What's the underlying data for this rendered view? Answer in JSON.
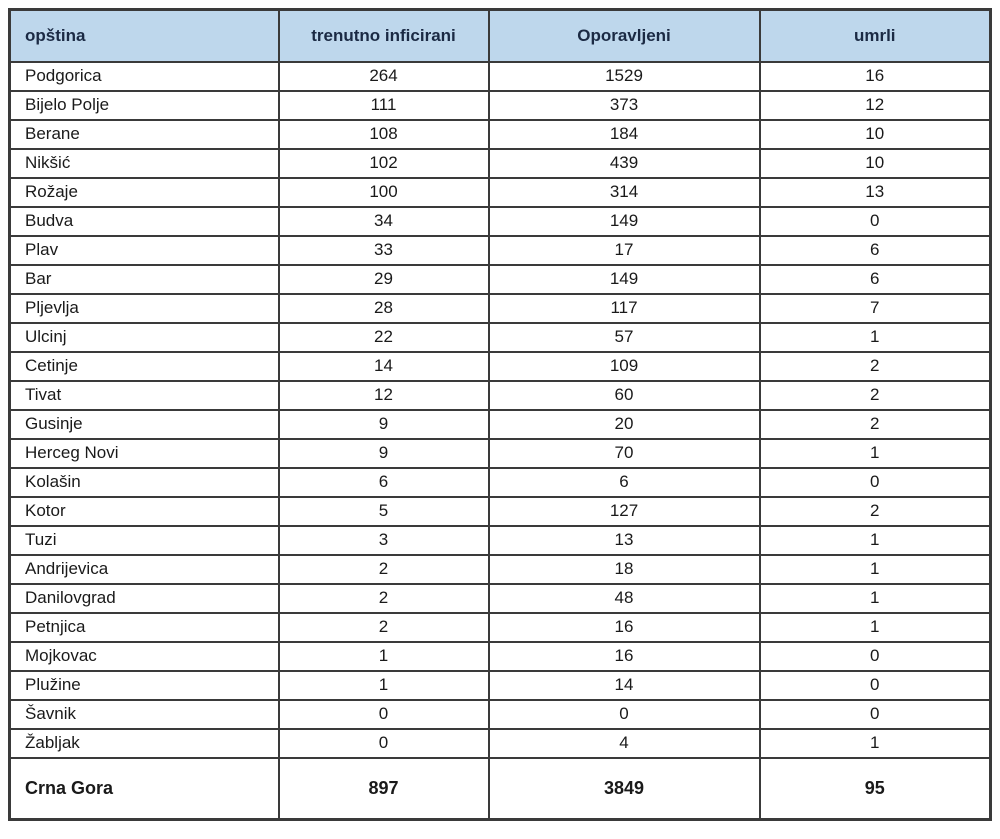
{
  "table": {
    "columns": [
      {
        "key": "name",
        "label": "opština"
      },
      {
        "key": "infected",
        "label": "trenutno inficirani"
      },
      {
        "key": "recovered",
        "label": "Oporavljeni"
      },
      {
        "key": "deaths",
        "label": "umrli"
      }
    ],
    "rows": [
      {
        "name": "Podgorica",
        "infected": "264",
        "recovered": "1529",
        "deaths": "16"
      },
      {
        "name": "Bijelo Polje",
        "infected": "111",
        "recovered": "373",
        "deaths": "12"
      },
      {
        "name": "Berane",
        "infected": "108",
        "recovered": "184",
        "deaths": "10"
      },
      {
        "name": "Nikšić",
        "infected": "102",
        "recovered": "439",
        "deaths": "10"
      },
      {
        "name": "Rožaje",
        "infected": "100",
        "recovered": "314",
        "deaths": "13"
      },
      {
        "name": "Budva",
        "infected": "34",
        "recovered": "149",
        "deaths": "0"
      },
      {
        "name": "Plav",
        "infected": "33",
        "recovered": "17",
        "deaths": "6"
      },
      {
        "name": "Bar",
        "infected": "29",
        "recovered": "149",
        "deaths": "6"
      },
      {
        "name": "Pljevlja",
        "infected": "28",
        "recovered": "117",
        "deaths": "7"
      },
      {
        "name": "Ulcinj",
        "infected": "22",
        "recovered": "57",
        "deaths": "1"
      },
      {
        "name": "Cetinje",
        "infected": "14",
        "recovered": "109",
        "deaths": "2"
      },
      {
        "name": "Tivat",
        "infected": "12",
        "recovered": "60",
        "deaths": "2"
      },
      {
        "name": "Gusinje",
        "infected": "9",
        "recovered": "20",
        "deaths": "2"
      },
      {
        "name": "Herceg Novi",
        "infected": "9",
        "recovered": "70",
        "deaths": "1"
      },
      {
        "name": "Kolašin",
        "infected": "6",
        "recovered": "6",
        "deaths": "0"
      },
      {
        "name": "Kotor",
        "infected": "5",
        "recovered": "127",
        "deaths": "2"
      },
      {
        "name": "Tuzi",
        "infected": "3",
        "recovered": "13",
        "deaths": "1"
      },
      {
        "name": "Andrijevica",
        "infected": "2",
        "recovered": "18",
        "deaths": "1"
      },
      {
        "name": "Danilovgrad",
        "infected": "2",
        "recovered": "48",
        "deaths": "1"
      },
      {
        "name": "Petnjica",
        "infected": "2",
        "recovered": "16",
        "deaths": "1"
      },
      {
        "name": "Mojkovac",
        "infected": "1",
        "recovered": "16",
        "deaths": "0"
      },
      {
        "name": "Plužine",
        "infected": "1",
        "recovered": "14",
        "deaths": "0"
      },
      {
        "name": "Šavnik",
        "infected": "0",
        "recovered": "0",
        "deaths": "0"
      },
      {
        "name": "Žabljak",
        "infected": "0",
        "recovered": "4",
        "deaths": "1"
      }
    ],
    "total": {
      "name": "Crna Gora",
      "infected": "897",
      "recovered": "3849",
      "deaths": "95"
    }
  },
  "colors": {
    "header_bg": "#bed7ec",
    "header_text": "#1b2a44",
    "border": "#3a3a3a",
    "text": "#1a1a1a"
  },
  "chart_data": {
    "type": "table",
    "columns": [
      "opština",
      "trenutno inficirani",
      "Oporavljeni",
      "umrli"
    ],
    "rows": [
      [
        "Podgorica",
        264,
        1529,
        16
      ],
      [
        "Bijelo Polje",
        111,
        373,
        12
      ],
      [
        "Berane",
        108,
        184,
        10
      ],
      [
        "Nikšić",
        102,
        439,
        10
      ],
      [
        "Rožaje",
        100,
        314,
        13
      ],
      [
        "Budva",
        34,
        149,
        0
      ],
      [
        "Plav",
        33,
        17,
        6
      ],
      [
        "Bar",
        29,
        149,
        6
      ],
      [
        "Pljevlja",
        28,
        117,
        7
      ],
      [
        "Ulcinj",
        22,
        57,
        1
      ],
      [
        "Cetinje",
        14,
        109,
        2
      ],
      [
        "Tivat",
        12,
        60,
        2
      ],
      [
        "Gusinje",
        9,
        20,
        2
      ],
      [
        "Herceg Novi",
        9,
        70,
        1
      ],
      [
        "Kolašin",
        6,
        6,
        0
      ],
      [
        "Kotor",
        5,
        127,
        2
      ],
      [
        "Tuzi",
        3,
        13,
        1
      ],
      [
        "Andrijevica",
        2,
        18,
        1
      ],
      [
        "Danilovgrad",
        2,
        48,
        1
      ],
      [
        "Petnjica",
        2,
        16,
        1
      ],
      [
        "Mojkovac",
        1,
        16,
        0
      ],
      [
        "Plužine",
        1,
        14,
        0
      ],
      [
        "Šavnik",
        0,
        0,
        0
      ],
      [
        "Žabljak",
        0,
        4,
        1
      ]
    ],
    "total_row": [
      "Crna Gora",
      897,
      3849,
      95
    ]
  }
}
